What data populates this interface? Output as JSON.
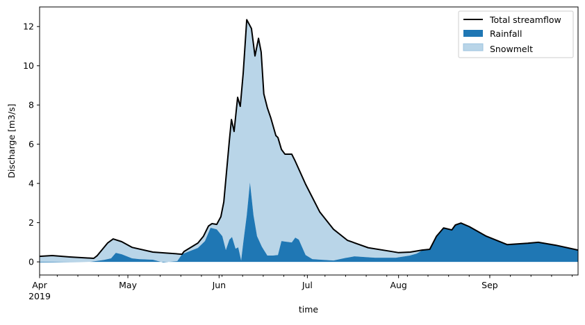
{
  "chart_data": {
    "type": "area",
    "title": "",
    "xlabel": "time",
    "ylabel": "Discharge [m3/s]",
    "x_unit": "days since 2019-04-01",
    "xlim": [
      0,
      183
    ],
    "ylim": [
      -0.67,
      13
    ],
    "x_ticks": [
      {
        "day": 0,
        "label": "Apr",
        "sublabel": "2019"
      },
      {
        "day": 30,
        "label": "May"
      },
      {
        "day": 61,
        "label": "Jun"
      },
      {
        "day": 91,
        "label": "Jul"
      },
      {
        "day": 122,
        "label": "Aug"
      },
      {
        "day": 153,
        "label": "Sep"
      }
    ],
    "y_ticks": [
      0,
      2,
      4,
      6,
      8,
      10,
      12
    ],
    "legend": {
      "position": "top-right",
      "entries": [
        {
          "label": "Total streamflow",
          "kind": "line",
          "color": "#000000"
        },
        {
          "label": "Rainfall",
          "kind": "area",
          "color": "#1f77b4"
        },
        {
          "label": "Snowmelt",
          "kind": "area",
          "color": "#b9d5e8"
        }
      ]
    },
    "series": [
      {
        "name": "Total streamflow",
        "points": [
          [
            0,
            0.28
          ],
          [
            4.3,
            0.32
          ],
          [
            10.2,
            0.25
          ],
          [
            18.4,
            0.18
          ],
          [
            19.6,
            0.32
          ],
          [
            23.1,
            0.96
          ],
          [
            25,
            1.17
          ],
          [
            27.9,
            1.03
          ],
          [
            31.4,
            0.74
          ],
          [
            38.5,
            0.5
          ],
          [
            48.4,
            0.39
          ],
          [
            49.1,
            0.53
          ],
          [
            53.8,
            0.96
          ],
          [
            55.7,
            1.31
          ],
          [
            57.4,
            1.83
          ],
          [
            58.6,
            1.95
          ],
          [
            60.2,
            1.91
          ],
          [
            61.6,
            2.3
          ],
          [
            62.6,
            3.05
          ],
          [
            64.5,
            6.2
          ],
          [
            65.2,
            7.26
          ],
          [
            66.1,
            6.65
          ],
          [
            67.3,
            8.39
          ],
          [
            68.2,
            7.93
          ],
          [
            69.2,
            9.63
          ],
          [
            70.4,
            12.35
          ],
          [
            72,
            11.9
          ],
          [
            73.2,
            10.5
          ],
          [
            74.4,
            11.4
          ],
          [
            75.3,
            10.7
          ],
          [
            76.2,
            8.57
          ],
          [
            77.4,
            7.86
          ],
          [
            78.6,
            7.33
          ],
          [
            80.3,
            6.44
          ],
          [
            81,
            6.34
          ],
          [
            82.2,
            5.73
          ],
          [
            83.4,
            5.49
          ],
          [
            85.7,
            5.49
          ],
          [
            86.9,
            5.13
          ],
          [
            90.4,
            3.96
          ],
          [
            95.2,
            2.55
          ],
          [
            99.9,
            1.66
          ],
          [
            104.6,
            1.1
          ],
          [
            111.7,
            0.72
          ],
          [
            118.8,
            0.55
          ],
          [
            122,
            0.47
          ],
          [
            126,
            0.5
          ],
          [
            130,
            0.6
          ],
          [
            132.6,
            0.64
          ],
          [
            134.9,
            1.31
          ],
          [
            137.3,
            1.73
          ],
          [
            140.1,
            1.63
          ],
          [
            141.3,
            1.88
          ],
          [
            143.2,
            1.98
          ],
          [
            146,
            1.8
          ],
          [
            151.8,
            1.31
          ],
          [
            158.9,
            0.88
          ],
          [
            165.9,
            0.95
          ],
          [
            169.5,
            1.0
          ],
          [
            175.4,
            0.85
          ],
          [
            183,
            0.6
          ]
        ]
      },
      {
        "name": "Rainfall",
        "points": [
          [
            0,
            -0.03
          ],
          [
            17.2,
            0
          ],
          [
            21.9,
            0.1
          ],
          [
            24.3,
            0.18
          ],
          [
            25.9,
            0.46
          ],
          [
            27.9,
            0.39
          ],
          [
            31.4,
            0.18
          ],
          [
            33.8,
            0.14
          ],
          [
            38.5,
            0.11
          ],
          [
            42,
            -0.03
          ],
          [
            46.8,
            0.04
          ],
          [
            48.4,
            0.39
          ],
          [
            53.8,
            0.71
          ],
          [
            56.2,
            1.06
          ],
          [
            58.1,
            1.74
          ],
          [
            60.2,
            1.66
          ],
          [
            62.1,
            1.31
          ],
          [
            63.3,
            0.6
          ],
          [
            64.5,
            1.13
          ],
          [
            65.4,
            1.27
          ],
          [
            66.6,
            0.67
          ],
          [
            67.5,
            0.74
          ],
          [
            68.5,
            0.07
          ],
          [
            69.2,
            0.96
          ],
          [
            70.4,
            2.37
          ],
          [
            71.5,
            4.05
          ],
          [
            72.7,
            2.37
          ],
          [
            73.9,
            1.31
          ],
          [
            75.5,
            0.78
          ],
          [
            77.4,
            0.32
          ],
          [
            79.3,
            0.32
          ],
          [
            81,
            0.35
          ],
          [
            82.2,
            1.06
          ],
          [
            85.7,
            0.99
          ],
          [
            86.9,
            1.24
          ],
          [
            88.1,
            1.13
          ],
          [
            90.4,
            0.35
          ],
          [
            92.7,
            0.14
          ],
          [
            99.9,
            0.07
          ],
          [
            104,
            0.2
          ],
          [
            107,
            0.28
          ],
          [
            114,
            0.21
          ],
          [
            121.1,
            0.21
          ],
          [
            125.8,
            0.32
          ],
          [
            128.1,
            0.42
          ],
          [
            130,
            0.58
          ],
          [
            132.6,
            0.64
          ],
          [
            134.9,
            1.31
          ],
          [
            137.3,
            1.73
          ],
          [
            140.1,
            1.63
          ],
          [
            141.3,
            1.88
          ],
          [
            143.2,
            1.98
          ],
          [
            146,
            1.8
          ],
          [
            151.8,
            1.31
          ],
          [
            158.9,
            0.88
          ],
          [
            165.9,
            0.95
          ],
          [
            169.5,
            1.0
          ],
          [
            175.4,
            0.85
          ],
          [
            183,
            0.6
          ]
        ]
      },
      {
        "name": "Snowmelt",
        "stacked_on": "Rainfall",
        "top": "Total streamflow"
      }
    ]
  }
}
